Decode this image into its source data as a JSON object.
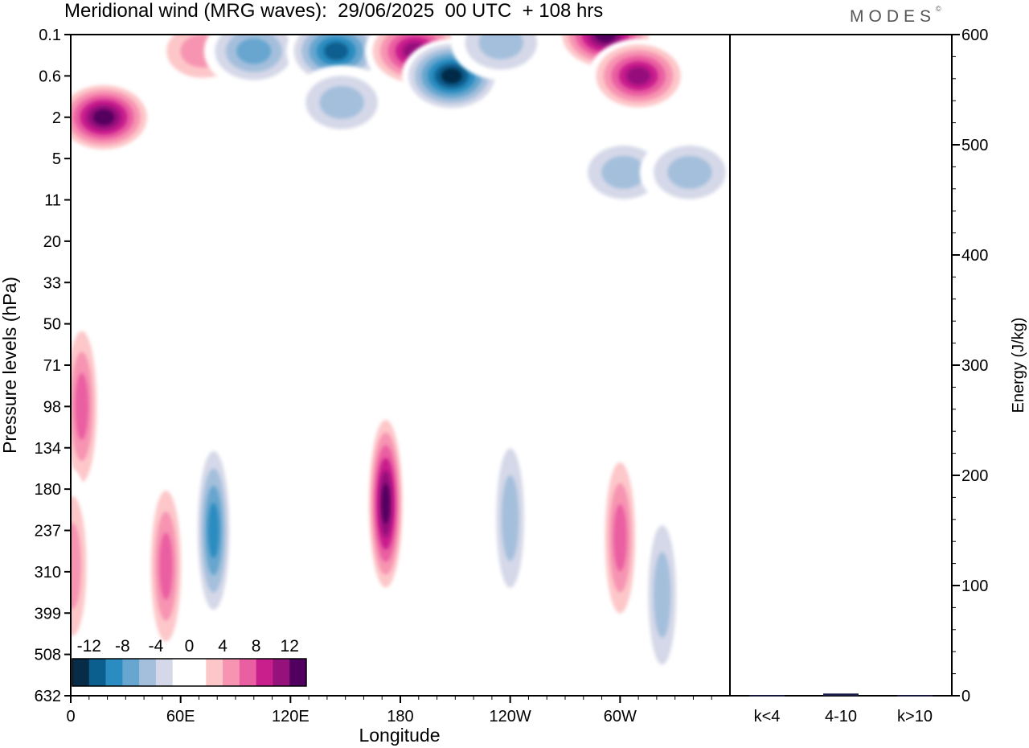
{
  "header": {
    "title": "Meridional wind (MRG waves):  29/06/2025  00 UTC  + 108 hrs",
    "brand": "MODES",
    "brand_mark": "©"
  },
  "chart_data": [
    {
      "type": "heatmap",
      "title": "Meridional wind (MRG waves):  29/06/2025  00 UTC  + 108 hrs",
      "xlabel": "Longitude",
      "ylabel": "Pressure levels (hPa)",
      "x_ticks": [
        "0",
        "60E",
        "120E",
        "180",
        "120W",
        "60W"
      ],
      "x_tick_longitudes": [
        0,
        60,
        120,
        180,
        240,
        300
      ],
      "x_range": [
        0,
        360
      ],
      "y_ticks": [
        "0.1",
        "0.6",
        "2",
        "5",
        "11",
        "20",
        "33",
        "50",
        "71",
        "98",
        "134",
        "180",
        "237",
        "310",
        "399",
        "508",
        "632"
      ],
      "colorbar": {
        "labels": [
          "-12",
          "-8",
          "-4",
          "0",
          "4",
          "8",
          "12"
        ],
        "colors": [
          "#062c47",
          "#0b5f8f",
          "#2a8cc0",
          "#67a6cf",
          "#a4bfdc",
          "#d5d8e8",
          "#ffffff",
          "#ffffff",
          "#fdc7c9",
          "#f794b2",
          "#ea5fa1",
          "#c81f8d",
          "#95117c",
          "#52005f"
        ],
        "placement": "bottom-left"
      },
      "features": [
        {
          "lon": 18,
          "level": 2,
          "value": 14
        },
        {
          "lon": 72,
          "level": 0.3,
          "value": 5
        },
        {
          "lon": 100,
          "level": 0.3,
          "value": -8
        },
        {
          "lon": 145,
          "level": 0.3,
          "value": -12
        },
        {
          "lon": 188,
          "level": 0.3,
          "value": 12
        },
        {
          "lon": 208,
          "level": 0.6,
          "value": -14
        },
        {
          "lon": 235,
          "level": 0.2,
          "value": -6
        },
        {
          "lon": 292,
          "level": 0.1,
          "value": 14
        },
        {
          "lon": 310,
          "level": 0.6,
          "value": 12
        },
        {
          "lon": 148,
          "level": 1.5,
          "value": -6
        },
        {
          "lon": 302,
          "level": 7,
          "value": -6
        },
        {
          "lon": 338,
          "level": 7,
          "value": -6
        },
        {
          "lon": 6,
          "level": 98,
          "value": 8
        },
        {
          "lon": 78,
          "level": 237,
          "value": -10
        },
        {
          "lon": 52,
          "level": 300,
          "value": 8
        },
        {
          "lon": 172,
          "level": 200,
          "value": 14
        },
        {
          "lon": 240,
          "level": 220,
          "value": -6
        },
        {
          "lon": 300,
          "level": 250,
          "value": 8
        },
        {
          "lon": 323,
          "level": 360,
          "value": -6
        },
        {
          "lon": 1,
          "level": 300,
          "value": 6
        }
      ]
    },
    {
      "type": "bar",
      "categories": [
        "k<4",
        "4-10",
        "k>10"
      ],
      "values": [
        0.5,
        2,
        0.5
      ],
      "ylabel": "Energy (J/kg)",
      "ylim": [
        0,
        600
      ],
      "y_ticks": [
        "0",
        "100",
        "200",
        "300",
        "400",
        "500",
        "600"
      ],
      "color": "#1d1d4d"
    }
  ]
}
